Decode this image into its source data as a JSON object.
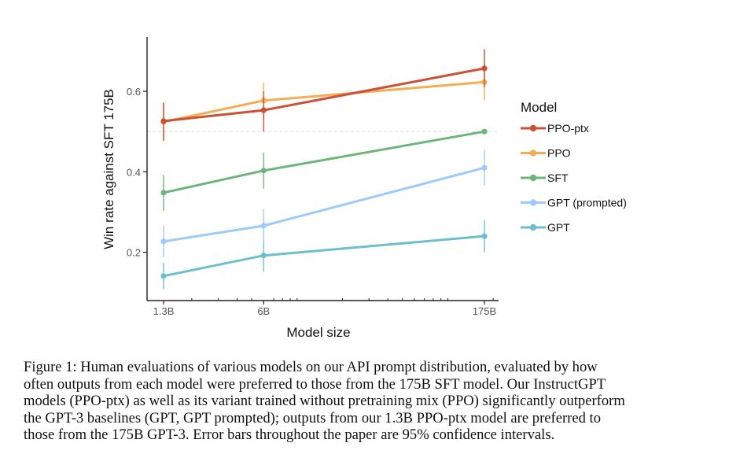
{
  "chart_data": {
    "type": "line",
    "title": "",
    "xlabel": "Model size",
    "ylabel": "Win rate against SFT 175B",
    "xscale": "log",
    "x": [
      1.3,
      6,
      175
    ],
    "x_tick_labels": [
      "1.3B",
      "6B",
      "175B"
    ],
    "x_minor_ticks": [
      2,
      3,
      4,
      5,
      7,
      8,
      9,
      10,
      20,
      30,
      40,
      50,
      60,
      70,
      80,
      90,
      100,
      200
    ],
    "xlim": [
      1.1,
      200
    ],
    "ylim": [
      0.08,
      0.735
    ],
    "y_ticks": [
      0.2,
      0.4,
      0.6
    ],
    "y_tick_labels": [
      "0.2",
      "0.4",
      "0.6"
    ],
    "reference_line": 0.5,
    "grid": false,
    "legend": {
      "title": "Model",
      "position": "right"
    },
    "series": [
      {
        "name": "PPO-ptx",
        "color": "#cd4f35",
        "values": [
          0.526,
          0.553,
          0.657
        ],
        "err_low": [
          0.478,
          0.5,
          0.61
        ],
        "err_high": [
          0.572,
          0.6,
          0.705
        ]
      },
      {
        "name": "PPO",
        "color": "#f4ad52",
        "values": [
          0.524,
          0.577,
          0.623
        ],
        "err_low": [
          0.475,
          0.53,
          0.578
        ],
        "err_high": [
          0.571,
          0.622,
          0.668
        ]
      },
      {
        "name": "SFT",
        "color": "#6db57a",
        "values": [
          0.348,
          0.403,
          0.5
        ],
        "err_low": [
          0.303,
          0.358,
          0.5
        ],
        "err_high": [
          0.392,
          0.448,
          0.5
        ]
      },
      {
        "name": "GPT (prompted)",
        "color": "#9ccbfb",
        "values": [
          0.227,
          0.266,
          0.41
        ],
        "err_low": [
          0.188,
          0.225,
          0.365
        ],
        "err_high": [
          0.266,
          0.308,
          0.455
        ]
      },
      {
        "name": "GPT",
        "color": "#6cbfcc",
        "values": [
          0.141,
          0.192,
          0.24
        ],
        "err_low": [
          0.108,
          0.152,
          0.2
        ],
        "err_high": [
          0.174,
          0.232,
          0.28
        ]
      }
    ]
  },
  "caption": {
    "lines": [
      "Figure 1: Human evaluations of various models on our API prompt distribution, evaluated by how",
      "often outputs from each model were preferred to those from the 175B SFT model. Our InstructGPT",
      "models (PPO-ptx) as well as its variant trained without pretraining mix (PPO) significantly outperform",
      "the GPT-3 baselines (GPT, GPT prompted); outputs from our 1.3B PPO-ptx model are preferred to",
      "those from the 175B GPT-3. Error bars throughout the paper are 95% confidence intervals."
    ]
  }
}
